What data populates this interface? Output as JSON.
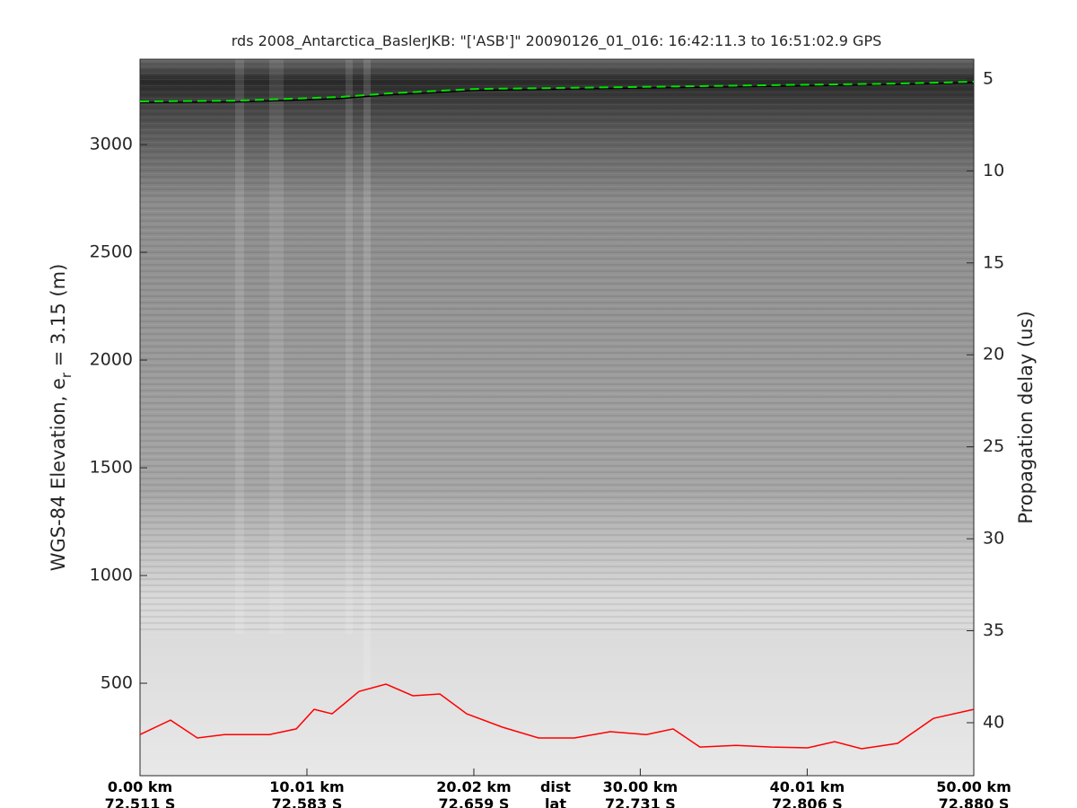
{
  "chart_data": {
    "type": "line",
    "title": "rds 2008_Antarctica_BaslerJKB: \"['ASB']\"  20090126_01_016: 16:42:11.3 to 16:51:02.9 GPS",
    "y_label_parts": [
      "WGS-84 Elevation, e",
      "r",
      " = 3.15 (m)"
    ],
    "y2_label": "Propagation delay (us)",
    "x_row_labels": [
      "dist",
      "lat"
    ],
    "xlim": [
      0,
      50
    ],
    "xticks": [
      {
        "value": 0,
        "label": "0.00 km"
      },
      {
        "value": 10.01,
        "label": "10.01 km"
      },
      {
        "value": 20.02,
        "label": "20.02 km"
      },
      {
        "value": 30.0,
        "label": "30.00 km"
      },
      {
        "value": 40.01,
        "label": "40.01 km"
      },
      {
        "value": 50.0,
        "label": "50.00 km"
      }
    ],
    "xtick_lat_labels": [
      "72.511 S",
      "72.583 S",
      "72.659 S",
      "72.731 S",
      "72.806 S",
      "72.880 S"
    ],
    "ylim": [
      71,
      3396
    ],
    "yticks": [
      500,
      1000,
      1500,
      2000,
      2500,
      3000
    ],
    "y2lim": [
      42.88,
      3.93
    ],
    "y2ticks": [
      5,
      10,
      15,
      20,
      25,
      30,
      35,
      40
    ],
    "series": [
      {
        "color": "#000000",
        "x": [
          0,
          5.87,
          12.06,
          14.75,
          20.13,
          29.28,
          37.35,
          45.43,
          50
        ],
        "values": [
          3195,
          3198,
          3214,
          3230,
          3252,
          3262,
          3270,
          3279,
          3288
        ]
      },
      {
        "color": "#00e000",
        "dashed": true,
        "x": [
          0,
          5.87,
          12.06,
          14.75,
          20.13,
          29.28,
          37.35,
          45.43,
          50
        ],
        "values": [
          3200,
          3204,
          3221,
          3237,
          3258,
          3267,
          3275,
          3283,
          3292
        ]
      },
      {
        "color": "#ff0000",
        "x": [
          0,
          1.83,
          3.44,
          5.06,
          7.75,
          9.37,
          10.44,
          11.52,
          13.13,
          14.75,
          16.36,
          17.98,
          19.59,
          21.74,
          23.9,
          26.05,
          28.2,
          30.36,
          31.97,
          33.58,
          35.74,
          37.89,
          40.04,
          41.66,
          43.27,
          45.43,
          47.58,
          50
        ],
        "values": [
          262,
          329,
          246,
          262,
          262,
          288,
          379,
          358,
          462,
          496,
          442,
          450,
          358,
          296,
          246,
          246,
          275,
          262,
          288,
          204,
          212,
          204,
          200,
          229,
          196,
          221,
          337,
          379
        ]
      }
    ]
  }
}
